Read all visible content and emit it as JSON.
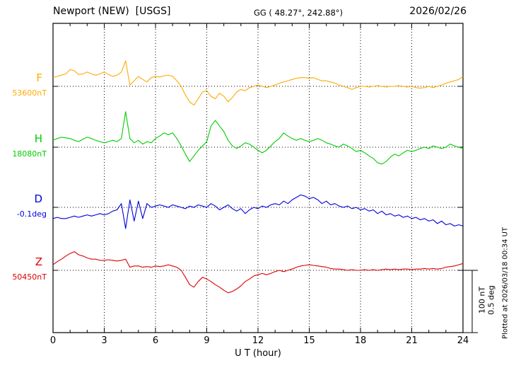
{
  "header": {
    "station_title": "Newport (NEW)  [USGS]",
    "coordinates": "GG ( 48.27°, 242.88°)",
    "date": "2026/02/26"
  },
  "right_panel": {
    "scale_nt": "100 nT",
    "scale_deg": "0.5 deg",
    "plotted_at": "Plotted at 2026/03/18 00:34 UT"
  },
  "chart_data": {
    "type": "line",
    "title": "Newport (NEW) [USGS] magnetogram 2026/02/26",
    "xlabel": "U T (hour)",
    "x_range": [
      0,
      24
    ],
    "x_ticks": [
      0,
      3,
      6,
      9,
      12,
      15,
      18,
      21,
      24
    ],
    "x_step_hours": 0.25,
    "grid": "dotted vertical lines every 3 hours; dotted horizontal baseline per trace",
    "scale": {
      "nT_per_division": 100,
      "deg_per_division": 0.5
    },
    "values_are": "deviation from baseline in series unit, sampled every 0.25 hour",
    "series": [
      {
        "name": "F",
        "baseline_label": "53600nT",
        "baseline_value": 53600,
        "unit": "nT",
        "color": "#ffaa00",
        "values": [
          14,
          16,
          18,
          20,
          27,
          25,
          19,
          20,
          23,
          20,
          18,
          20,
          23,
          19,
          16,
          18,
          23,
          41,
          2,
          9,
          16,
          11,
          7,
          14,
          16,
          15,
          17,
          18,
          16,
          9,
          0,
          -14,
          -25,
          -30,
          -20,
          -9,
          -7,
          -16,
          -20,
          -11,
          -16,
          -25,
          -18,
          -9,
          -5,
          -7,
          -2,
          0,
          2,
          0,
          -2,
          0,
          2,
          5,
          7,
          9,
          11,
          13,
          14,
          14,
          13,
          14,
          11,
          9,
          9,
          7,
          5,
          2,
          0,
          -2,
          -5,
          -2,
          0,
          0,
          -1,
          0,
          1,
          0,
          -1,
          0,
          0,
          1,
          0,
          -1,
          0,
          -2,
          -3,
          -2,
          0,
          -2,
          0,
          2,
          5,
          7,
          9,
          11,
          16
        ]
      },
      {
        "name": "H",
        "baseline_label": "18080nT",
        "baseline_value": 18080,
        "unit": "nT",
        "color": "#00cc00",
        "values": [
          11,
          14,
          16,
          15,
          14,
          11,
          9,
          13,
          16,
          14,
          11,
          9,
          7,
          9,
          11,
          9,
          14,
          57,
          14,
          7,
          11,
          5,
          9,
          7,
          14,
          18,
          23,
          20,
          23,
          14,
          2,
          -11,
          -23,
          -14,
          -5,
          2,
          9,
          34,
          43,
          34,
          25,
          11,
          2,
          -2,
          2,
          7,
          5,
          0,
          -5,
          -9,
          -5,
          2,
          9,
          14,
          23,
          18,
          14,
          11,
          14,
          11,
          9,
          11,
          14,
          11,
          7,
          5,
          2,
          0,
          5,
          2,
          -2,
          -7,
          -5,
          -9,
          -14,
          -18,
          -25,
          -27,
          -23,
          -16,
          -11,
          -14,
          -9,
          -5,
          -7,
          -5,
          -2,
          0,
          -2,
          2,
          0,
          -2,
          0,
          5,
          2,
          0,
          -2
        ]
      },
      {
        "name": "D",
        "baseline_label": "-0.1deg",
        "baseline_value": -0.1,
        "unit": "deg",
        "color": "#0000dd",
        "values": [
          -0.09,
          -0.08,
          -0.09,
          -0.09,
          -0.08,
          -0.07,
          -0.08,
          -0.07,
          -0.06,
          -0.07,
          -0.06,
          -0.05,
          -0.06,
          -0.05,
          -0.03,
          -0.02,
          0.03,
          -0.17,
          0.06,
          -0.11,
          0.05,
          -0.09,
          0.03,
          0,
          0.01,
          0.02,
          0.01,
          0,
          0.02,
          0.01,
          0,
          -0.01,
          0.01,
          0,
          0.02,
          0.01,
          0,
          0.03,
          0.01,
          -0.02,
          0,
          0.02,
          -0.01,
          -0.03,
          -0.01,
          -0.05,
          -0.02,
          0,
          -0.01,
          0.01,
          0,
          0.02,
          0.03,
          0.02,
          0.05,
          0.03,
          0.06,
          0.08,
          0.1,
          0.09,
          0.07,
          0.08,
          0.06,
          0.03,
          0.05,
          0.02,
          0.03,
          0.01,
          0,
          0.01,
          -0.01,
          0,
          -0.02,
          -0.01,
          -0.03,
          -0.02,
          -0.05,
          -0.03,
          -0.06,
          -0.05,
          -0.07,
          -0.06,
          -0.08,
          -0.07,
          -0.09,
          -0.08,
          -0.1,
          -0.09,
          -0.11,
          -0.1,
          -0.13,
          -0.11,
          -0.14,
          -0.13,
          -0.15,
          -0.14,
          -0.15
        ]
      },
      {
        "name": "Z",
        "baseline_label": "50450nT",
        "baseline_value": 50450,
        "unit": "nT",
        "color": "#dd0000",
        "values": [
          9,
          14,
          18,
          23,
          27,
          30,
          25,
          23,
          20,
          18,
          18,
          16,
          16,
          17,
          16,
          15,
          16,
          18,
          5,
          7,
          7,
          5,
          6,
          5,
          7,
          6,
          7,
          9,
          7,
          5,
          0,
          -11,
          -23,
          -27,
          -18,
          -11,
          -14,
          -18,
          -23,
          -27,
          -32,
          -36,
          -34,
          -30,
          -25,
          -18,
          -14,
          -9,
          -7,
          -5,
          -7,
          -5,
          -2,
          0,
          -2,
          0,
          2,
          5,
          7,
          8,
          9,
          8,
          7,
          6,
          5,
          3,
          2,
          2,
          1,
          0,
          1,
          0,
          0,
          1,
          0,
          1,
          0,
          1,
          2,
          1,
          2,
          1,
          2,
          2,
          1,
          2,
          2,
          3,
          2,
          3,
          2,
          3,
          5,
          6,
          7,
          9,
          11
        ]
      }
    ]
  }
}
